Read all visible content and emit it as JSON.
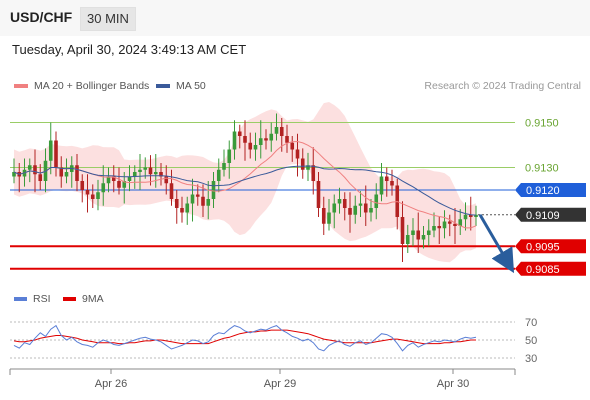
{
  "header": {
    "symbol": "USD/CHF",
    "timeframe": "30 MIN"
  },
  "timestamp": "Tuesday, April 30, 2024 3:49:13 AM CET",
  "legend": {
    "ma20_label": "MA 20 + Bollinger Bands",
    "ma20_color": "#f08080",
    "ma50_label": "MA 50",
    "ma50_color": "#3a5a9a"
  },
  "copyright": "Research © 2024 Trading Central",
  "chart_data": {
    "type": "line",
    "x_ticks": [
      "Apr 26",
      "Apr 29",
      "Apr 30"
    ],
    "price_panel": {
      "y_range": [
        0.908,
        0.916
      ],
      "candles_close_approx": [
        0.9128,
        0.9126,
        0.9129,
        0.9131,
        0.9127,
        0.9124,
        0.9133,
        0.9142,
        0.913,
        0.9126,
        0.9128,
        0.9131,
        0.9124,
        0.912,
        0.9118,
        0.9116,
        0.9119,
        0.9123,
        0.9126,
        0.9124,
        0.9121,
        0.9124,
        0.9126,
        0.9128,
        0.9129,
        0.913,
        0.9127,
        0.9128,
        0.9126,
        0.9123,
        0.9116,
        0.9112,
        0.911,
        0.9114,
        0.9118,
        0.9117,
        0.9113,
        0.9116,
        0.9124,
        0.9129,
        0.9132,
        0.9138,
        0.9146,
        0.9144,
        0.9141,
        0.9138,
        0.914,
        0.9143,
        0.9142,
        0.9145,
        0.9148,
        0.9144,
        0.9141,
        0.9138,
        0.9134,
        0.9129,
        0.9131,
        0.9124,
        0.9112,
        0.9105,
        0.911,
        0.9114,
        0.9116,
        0.9112,
        0.9109,
        0.9113,
        0.9114,
        0.911,
        0.9112,
        0.9118,
        0.9126,
        0.9124,
        0.9122,
        0.9108,
        0.9096,
        0.91,
        0.9102,
        0.9098,
        0.91,
        0.9102,
        0.9104,
        0.9103,
        0.9106,
        0.9105,
        0.9104,
        0.9107,
        0.9109,
        0.9108,
        0.9109
      ],
      "levels": [
        {
          "value": 0.915,
          "label": "0.9150",
          "style": "thin",
          "color": "#9acd66"
        },
        {
          "value": 0.913,
          "label": "0.9130",
          "style": "thin",
          "color": "#9acd66"
        },
        {
          "value": 0.912,
          "label": "0.9120",
          "style": "pivot",
          "color": "#1f5fd9"
        },
        {
          "value": 0.9109,
          "label": "0.9109",
          "style": "last",
          "color": "#333333"
        },
        {
          "value": 0.9095,
          "label": "0.9095",
          "style": "support",
          "color": "#e00000"
        },
        {
          "value": 0.9085,
          "label": "0.9085",
          "style": "support",
          "color": "#e00000"
        }
      ],
      "forecast": {
        "from": 0.9109,
        "to": 0.9085,
        "color": "#2a5d9c"
      }
    },
    "rsi_panel": {
      "legend": [
        {
          "name": "RSI",
          "color": "#5a7fd6"
        },
        {
          "name": "9MA",
          "color": "#e00000"
        }
      ],
      "y_ticks": [
        "70",
        "50",
        "30"
      ],
      "levels": [
        70,
        50,
        30
      ],
      "rsi_values_approx": [
        44,
        41,
        47,
        45,
        52,
        58,
        54,
        62,
        66,
        55,
        50,
        53,
        48,
        45,
        44,
        42,
        47,
        50,
        48,
        45,
        44,
        46,
        48,
        50,
        52,
        53,
        51,
        50,
        48,
        44,
        40,
        42,
        44,
        47,
        50,
        49,
        46,
        48,
        55,
        58,
        57,
        62,
        66,
        64,
        60,
        58,
        60,
        62,
        61,
        64,
        66,
        61,
        58,
        54,
        52,
        49,
        51,
        47,
        40,
        38,
        44,
        47,
        49,
        45,
        43,
        47,
        49,
        45,
        47,
        52,
        57,
        56,
        53,
        46,
        38,
        44,
        47,
        42,
        45,
        47,
        49,
        48,
        50,
        49,
        48,
        51,
        53,
        52,
        53
      ],
      "ma9_values_approx": [
        49,
        48,
        48,
        49,
        50,
        52,
        53,
        54,
        55,
        55,
        54,
        53,
        52,
        50,
        49,
        48,
        47,
        47,
        47,
        47,
        46,
        46,
        47,
        47,
        48,
        49,
        49,
        50,
        50,
        49,
        48,
        47,
        46,
        46,
        46,
        46,
        46,
        46,
        48,
        50,
        52,
        53,
        55,
        57,
        58,
        59,
        59,
        60,
        60,
        61,
        61,
        61,
        61,
        60,
        59,
        58,
        57,
        55,
        53,
        51,
        50,
        49,
        48,
        47,
        47,
        47,
        47,
        47,
        47,
        48,
        49,
        50,
        51,
        51,
        50,
        49,
        48,
        47,
        46,
        46,
        46,
        46,
        47,
        47,
        48,
        48,
        49,
        50,
        50
      ]
    }
  }
}
